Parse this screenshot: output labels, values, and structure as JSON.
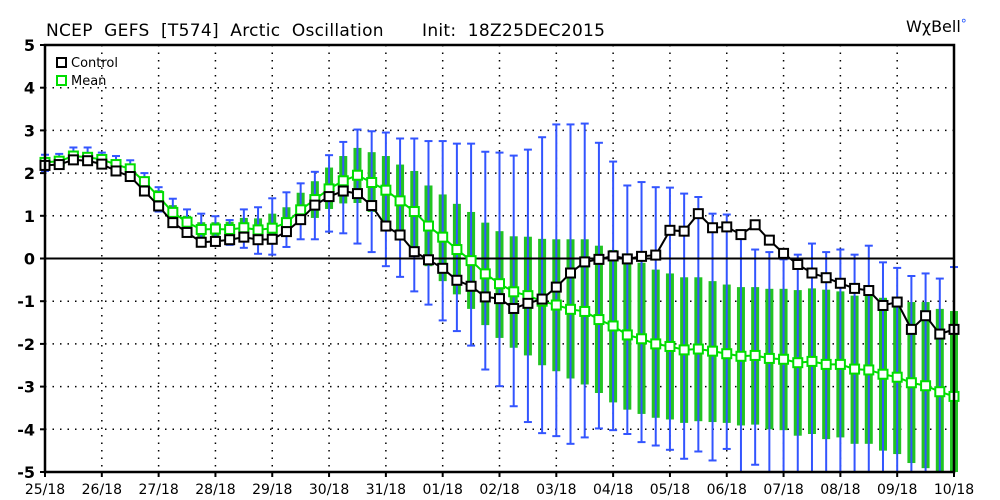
{
  "header": {
    "title": "NCEP  GEFS  [T574]  Arctic  Oscillation",
    "init": "Init:  18Z25DEC2015",
    "logo": "WχBell"
  },
  "colors": {
    "control": "#000000",
    "mean": "#00dd00",
    "box": "#22c422",
    "whisker": "#3355ff"
  },
  "chart_data": {
    "type": "line",
    "title": "NCEP GEFS [T574] Arctic Oscillation",
    "xlabel": "",
    "ylabel": "",
    "ylim": [
      -5,
      5
    ],
    "yticks": [
      "5",
      "4",
      "3",
      "2",
      "1",
      "0",
      "-1",
      "-2",
      "-3",
      "-4",
      "-5"
    ],
    "xticks": [
      "25/18",
      "26/18",
      "27/18",
      "28/18",
      "29/18",
      "30/18",
      "31/18",
      "01/18",
      "02/18",
      "03/18",
      "04/18",
      "05/18",
      "06/18",
      "07/18",
      "08/18",
      "09/18",
      "10/18"
    ],
    "x_step_hours": 6,
    "grid": true,
    "legend": {
      "position": "top-left",
      "entries": [
        "Control",
        "Mean"
      ]
    },
    "series": [
      {
        "name": "Control",
        "values": [
          2.18,
          2.2,
          2.31,
          2.29,
          2.21,
          2.05,
          1.92,
          1.58,
          1.23,
          0.84,
          0.61,
          0.38,
          0.4,
          0.44,
          0.5,
          0.44,
          0.45,
          0.63,
          0.91,
          1.25,
          1.45,
          1.58,
          1.52,
          1.24,
          0.76,
          0.55,
          0.16,
          -0.03,
          -0.23,
          -0.51,
          -0.65,
          -0.9,
          -0.94,
          -1.17,
          -1.05,
          -0.95,
          -0.67,
          -0.34,
          -0.08,
          -0.02,
          0.06,
          -0.01,
          0.05,
          0.08,
          0.66,
          0.64,
          1.05,
          0.72,
          0.74,
          0.56,
          0.79,
          0.43,
          0.12,
          -0.14,
          -0.34,
          -0.45,
          -0.58,
          -0.7,
          -0.75,
          -1.1,
          -1.02,
          -1.66,
          -1.34,
          -1.77,
          -1.66
        ]
      },
      {
        "name": "Mean",
        "values": [
          2.25,
          2.28,
          2.4,
          2.37,
          2.32,
          2.2,
          2.1,
          1.8,
          1.45,
          1.08,
          0.85,
          0.68,
          0.69,
          0.68,
          0.72,
          0.67,
          0.71,
          0.84,
          1.14,
          1.38,
          1.63,
          1.82,
          1.95,
          1.78,
          1.6,
          1.35,
          1.1,
          0.76,
          0.5,
          0.21,
          -0.05,
          -0.36,
          -0.59,
          -0.78,
          -0.87,
          -1.0,
          -1.09,
          -1.19,
          -1.24,
          -1.43,
          -1.58,
          -1.79,
          -1.88,
          -2.0,
          -2.06,
          -2.14,
          -2.12,
          -2.17,
          -2.23,
          -2.29,
          -2.27,
          -2.34,
          -2.36,
          -2.44,
          -2.41,
          -2.48,
          -2.48,
          -2.59,
          -2.61,
          -2.71,
          -2.78,
          -2.91,
          -2.98,
          -3.12,
          -3.23
        ]
      }
    ],
    "box_top": [
      2.35,
      2.35,
      2.45,
      2.45,
      2.38,
      2.3,
      2.2,
      1.9,
      1.6,
      1.25,
      1.0,
      0.85,
      0.85,
      0.86,
      0.95,
      0.94,
      1.05,
      1.2,
      1.54,
      1.81,
      2.13,
      2.4,
      2.59,
      2.49,
      2.4,
      2.2,
      2.05,
      1.71,
      1.5,
      1.28,
      1.09,
      0.84,
      0.64,
      0.52,
      0.51,
      0.46,
      0.45,
      0.45,
      0.45,
      0.3,
      0.2,
      0.12,
      -0.1,
      -0.26,
      -0.35,
      -0.44,
      -0.44,
      -0.53,
      -0.61,
      -0.67,
      -0.67,
      -0.71,
      -0.71,
      -0.74,
      -0.7,
      -0.73,
      -0.77,
      -0.87,
      -0.83,
      -0.92,
      -0.92,
      -1.02,
      -1.02,
      -1.18,
      -1.23
    ],
    "box_bottom": [
      2.1,
      2.15,
      2.3,
      2.28,
      2.2,
      2.05,
      1.95,
      1.6,
      1.25,
      0.9,
      0.62,
      0.45,
      0.45,
      0.45,
      0.41,
      0.41,
      0.43,
      0.52,
      0.8,
      0.95,
      1.16,
      1.29,
      1.3,
      1.09,
      0.84,
      0.52,
      0.21,
      -0.18,
      -0.53,
      -0.84,
      -1.18,
      -1.56,
      -1.86,
      -2.09,
      -2.27,
      -2.5,
      -2.64,
      -2.81,
      -2.95,
      -3.15,
      -3.37,
      -3.54,
      -3.64,
      -3.73,
      -3.77,
      -3.85,
      -3.81,
      -3.83,
      -3.85,
      -3.91,
      -3.89,
      -4.0,
      -4.02,
      -4.15,
      -4.11,
      -4.23,
      -4.19,
      -4.34,
      -4.34,
      -4.5,
      -4.58,
      -4.79,
      -4.91,
      -5.0,
      -5.0
    ],
    "whisker_top": [
      2.43,
      2.45,
      2.6,
      2.6,
      2.48,
      2.4,
      2.3,
      2.0,
      1.67,
      1.4,
      1.15,
      1.05,
      0.99,
      0.9,
      1.15,
      1.2,
      1.41,
      1.55,
      1.76,
      2.03,
      2.42,
      2.73,
      3.02,
      2.98,
      2.95,
      2.81,
      2.81,
      2.75,
      2.75,
      2.69,
      2.69,
      2.5,
      2.48,
      2.41,
      2.55,
      2.84,
      3.14,
      3.14,
      3.16,
      2.71,
      2.27,
      1.71,
      1.79,
      1.67,
      1.66,
      1.52,
      1.44,
      1.05,
      1.03,
      0.54,
      0.21,
      0.15,
      -0.02,
      0.09,
      0.35,
      0.15,
      0.21,
      0.09,
      0.3,
      -0.09,
      -0.22,
      -0.41,
      -0.35,
      -0.47,
      -0.2
    ],
    "whisker_bottom": [
      2.05,
      2.12,
      2.25,
      2.22,
      2.15,
      2.0,
      1.88,
      1.5,
      1.1,
      0.8,
      0.55,
      0.38,
      0.3,
      0.32,
      0.25,
      0.11,
      0.09,
      0.27,
      0.45,
      0.45,
      0.63,
      0.59,
      0.35,
      0.15,
      -0.18,
      -0.43,
      -0.77,
      -1.08,
      -1.45,
      -1.7,
      -2.04,
      -2.6,
      -2.99,
      -3.46,
      -3.83,
      -4.09,
      -4.16,
      -4.34,
      -4.19,
      -3.98,
      -4.02,
      -4.11,
      -4.3,
      -4.38,
      -4.48,
      -4.69,
      -4.52,
      -4.73,
      -4.46,
      -5.0,
      -4.83,
      -5.0,
      -5.0,
      -5.0,
      -5.0,
      -5.0,
      -5.0,
      -5.0,
      -5.0,
      -5.0,
      -5.0,
      -5.0,
      -5.0,
      -5.0,
      -5.0
    ]
  }
}
